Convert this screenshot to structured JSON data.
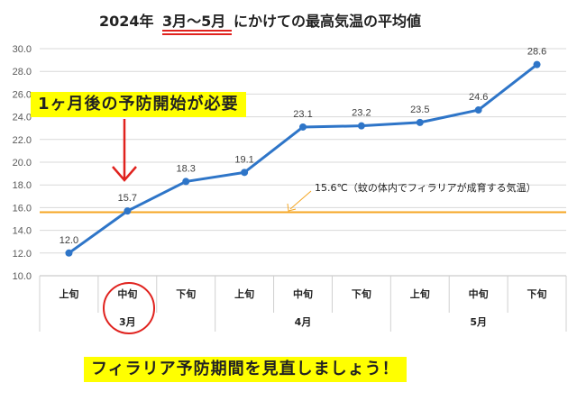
{
  "header": {
    "title_prefix": "2024年",
    "title_highlight": "3月〜5月",
    "title_suffix": "にかけての最高気温の平均値"
  },
  "callouts": {
    "top": "1ヶ月後の予防開始が必要",
    "bottom": "フィラリア予防期間を見直しましょう！"
  },
  "chart_data": {
    "type": "line",
    "title": "2024年 3月〜5月にかけての最高気温の平均値",
    "categories": [
      "上旬",
      "中旬",
      "下旬",
      "上旬",
      "中旬",
      "下旬",
      "上旬",
      "中旬",
      "下旬"
    ],
    "groups": [
      {
        "label": "3月",
        "span": [
          0,
          2
        ]
      },
      {
        "label": "4月",
        "span": [
          3,
          5
        ]
      },
      {
        "label": "5月",
        "span": [
          6,
          8
        ]
      }
    ],
    "series": [
      {
        "values": [
          12.0,
          15.7,
          18.3,
          19.1,
          23.1,
          23.2,
          23.5,
          24.6,
          28.6
        ],
        "color": "#2e75c8"
      }
    ],
    "data_labels": [
      "12.0",
      "15.7",
      "18.3",
      "19.1",
      "23.1",
      "23.2",
      "23.5",
      "24.6",
      "28.6"
    ],
    "yticks": [
      "10.0",
      "12.0",
      "14.0",
      "16.0",
      "18.0",
      "20.0",
      "22.0",
      "24.0",
      "26.0",
      "28.0",
      "30.0"
    ],
    "ylim": [
      10,
      30
    ],
    "grid": true,
    "reference_line": {
      "value": 15.6,
      "label": "15.6℃（蚊の体内でフィラリアが成育する気温）",
      "color": "#f5a623"
    },
    "highlight_category_index": 1,
    "highlight_color": "#e0221e"
  }
}
